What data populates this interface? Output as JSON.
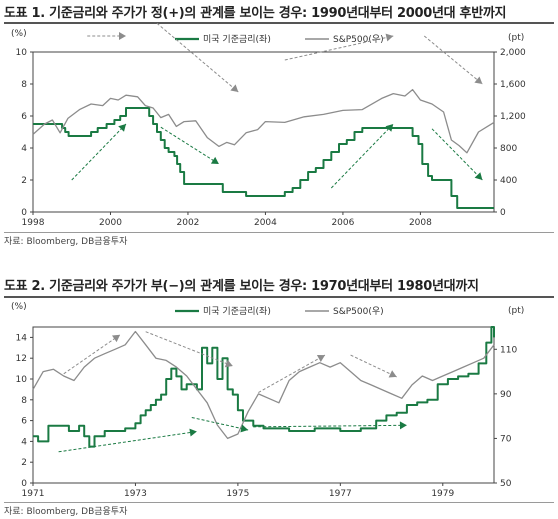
{
  "figures": [
    {
      "title": "도표 1. 기준금리와 주가가 정(+)의 관계를 보이는 경우: 1990년대부터 2000년대 후반까지",
      "source": "자료: Bloomberg, DB금융투자",
      "colors": {
        "rate": "#1a7a43",
        "spx": "#8c8c8c",
        "arrow_up": "#1a7a43",
        "arrow_down": "#8c8c8c"
      }
    },
    {
      "title": "도표 2. 기준금리와 주가가 부(−)의 관계를 보이는 경우: 1970년대부터 1980년대까지",
      "source": "자료: Bloomberg, DB금융투자",
      "colors": {
        "rate": "#1a7a43",
        "spx": "#8c8c8c",
        "arrow_up": "#1a7a43",
        "arrow_down": "#8c8c8c"
      }
    }
  ],
  "chart_data": [
    {
      "type": "line",
      "left_unit": "(%)",
      "right_unit": "(pt)",
      "legend_placement": "top-center",
      "grid": false,
      "x_range": [
        1998,
        2009.9
      ],
      "x_ticks": [
        "1998",
        "2000",
        "2002",
        "2004",
        "2006",
        "2008"
      ],
      "left_axis": {
        "range": [
          0,
          10
        ],
        "ticks": [
          "0",
          "2",
          "4",
          "6",
          "8",
          "10"
        ]
      },
      "right_axis": {
        "range": [
          0,
          2000
        ],
        "ticks": [
          "0",
          "400",
          "800",
          "1,200",
          "1,600",
          "2,000"
        ]
      },
      "series": [
        {
          "name": "미국 기준금리(좌)",
          "axis": "left",
          "step": true,
          "x": [
            1998.0,
            1998.75,
            1998.83,
            1998.92,
            1999.5,
            1999.67,
            1999.9,
            2000.1,
            2000.25,
            2000.4,
            2001.0,
            2001.1,
            2001.2,
            2001.3,
            2001.4,
            2001.5,
            2001.65,
            2001.72,
            2001.8,
            2001.9,
            2002.9,
            2003.5,
            2004.5,
            2004.7,
            2004.9,
            2005.1,
            2005.3,
            2005.5,
            2005.7,
            2005.9,
            2006.1,
            2006.3,
            2006.5,
            2007.7,
            2007.8,
            2007.95,
            2008.05,
            2008.2,
            2008.3,
            2008.8,
            2008.95,
            2009.9
          ],
          "values": [
            5.5,
            5.25,
            5.0,
            4.75,
            5.0,
            5.25,
            5.5,
            5.75,
            6.0,
            6.5,
            6.0,
            5.5,
            5.0,
            4.5,
            4.0,
            3.75,
            3.5,
            3.0,
            2.5,
            1.75,
            1.25,
            1.0,
            1.25,
            1.5,
            2.0,
            2.5,
            2.75,
            3.25,
            3.75,
            4.25,
            4.5,
            5.0,
            5.25,
            5.25,
            4.75,
            4.25,
            3.0,
            2.25,
            2.0,
            1.0,
            0.25,
            0.25
          ]
        },
        {
          "name": "S&P500(우)",
          "axis": "right",
          "x": [
            1998.0,
            1998.3,
            1998.5,
            1998.7,
            1998.9,
            1999.2,
            1999.5,
            1999.8,
            2000.0,
            2000.2,
            2000.4,
            2000.7,
            2000.9,
            2001.1,
            2001.3,
            2001.5,
            2001.7,
            2001.9,
            2002.2,
            2002.5,
            2002.8,
            2003.0,
            2003.2,
            2003.5,
            2003.8,
            2004.0,
            2004.5,
            2005.0,
            2005.5,
            2006.0,
            2006.5,
            2007.0,
            2007.3,
            2007.6,
            2007.8,
            2008.0,
            2008.3,
            2008.6,
            2008.8,
            2009.0,
            2009.2,
            2009.5,
            2009.9
          ],
          "values": [
            970,
            1100,
            1150,
            990,
            1170,
            1280,
            1350,
            1330,
            1420,
            1400,
            1460,
            1440,
            1330,
            1300,
            1180,
            1220,
            1070,
            1130,
            1140,
            930,
            820,
            870,
            840,
            990,
            1030,
            1130,
            1120,
            1190,
            1220,
            1270,
            1280,
            1420,
            1480,
            1450,
            1530,
            1400,
            1350,
            1250,
            900,
            830,
            740,
            1000,
            1120
          ]
        }
      ],
      "trend_arrows": [
        {
          "dir": "up",
          "color": "gray",
          "from": [
            1999.4,
            1.1
          ],
          "to": [
            2000.4,
            1.1
          ]
        },
        {
          "dir": "down",
          "color": "gray",
          "from": [
            2001.1,
            1.2
          ],
          "to": [
            2003.3,
            0.75
          ]
        },
        {
          "dir": "up",
          "color": "gray",
          "from": [
            2004.5,
            0.95
          ],
          "to": [
            2007.3,
            1.1
          ]
        },
        {
          "dir": "down",
          "color": "gray",
          "from": [
            2008.1,
            1.1
          ],
          "to": [
            2009.6,
            0.8
          ]
        },
        {
          "dir": "up",
          "color": "green",
          "from": [
            1999.0,
            0.2
          ],
          "to": [
            2000.4,
            0.55
          ]
        },
        {
          "dir": "down",
          "color": "green",
          "from": [
            2001.3,
            0.53
          ],
          "to": [
            2002.8,
            0.3
          ]
        },
        {
          "dir": "up",
          "color": "green",
          "from": [
            2005.7,
            0.15
          ],
          "to": [
            2007.3,
            0.55
          ]
        },
        {
          "dir": "down",
          "color": "green",
          "from": [
            2008.3,
            0.52
          ],
          "to": [
            2009.6,
            0.2
          ]
        }
      ]
    },
    {
      "type": "line",
      "left_unit": "(%)",
      "right_unit": "(pt)",
      "legend_placement": "top-center",
      "grid": false,
      "x_range": [
        1971,
        1980
      ],
      "x_ticks": [
        "1971",
        "1973",
        "1975",
        "1977",
        "1979"
      ],
      "left_axis": {
        "range": [
          0,
          15
        ],
        "ticks": [
          "0",
          "2",
          "4",
          "6",
          "8",
          "10",
          "12",
          "14"
        ]
      },
      "right_axis": {
        "range": [
          50,
          120
        ],
        "ticks": [
          "50",
          "70",
          "90",
          "110"
        ]
      },
      "series": [
        {
          "name": "미국 기준금리(좌)",
          "axis": "left",
          "step": true,
          "x": [
            1971.0,
            1971.1,
            1971.3,
            1971.7,
            1971.9,
            1972.0,
            1972.1,
            1972.2,
            1972.4,
            1972.6,
            1972.8,
            1973.0,
            1973.1,
            1973.2,
            1973.3,
            1973.4,
            1973.5,
            1973.6,
            1973.7,
            1973.8,
            1973.9,
            1974.0,
            1974.2,
            1974.3,
            1974.4,
            1974.5,
            1974.6,
            1974.7,
            1974.8,
            1974.9,
            1975.0,
            1975.1,
            1975.3,
            1975.5,
            1975.8,
            1976.0,
            1976.5,
            1977.0,
            1977.4,
            1977.7,
            1977.9,
            1978.1,
            1978.3,
            1978.5,
            1978.7,
            1978.9,
            1979.1,
            1979.3,
            1979.5,
            1979.7,
            1979.85,
            1979.95,
            1980.0
          ],
          "values": [
            4.5,
            4.0,
            5.5,
            5.0,
            5.5,
            4.5,
            3.5,
            4.5,
            5.0,
            5.0,
            5.25,
            5.75,
            6.5,
            7.0,
            7.5,
            8.0,
            8.5,
            10.0,
            11.0,
            10.25,
            9.0,
            9.5,
            9.0,
            13.0,
            11.5,
            13.0,
            10.0,
            12.0,
            9.0,
            8.5,
            7.0,
            6.0,
            5.5,
            5.25,
            5.25,
            5.0,
            5.25,
            5.0,
            5.25,
            6.0,
            6.5,
            6.75,
            7.5,
            7.75,
            8.0,
            9.5,
            10.0,
            10.25,
            10.5,
            11.5,
            13.5,
            15.0,
            14.0
          ]
        },
        {
          "name": "S&P500(우)",
          "axis": "right",
          "x": [
            1971.0,
            1971.2,
            1971.4,
            1971.6,
            1971.8,
            1972.0,
            1972.2,
            1972.4,
            1972.6,
            1972.8,
            1973.0,
            1973.2,
            1973.4,
            1973.6,
            1973.8,
            1974.0,
            1974.2,
            1974.4,
            1974.6,
            1974.8,
            1975.0,
            1975.2,
            1975.4,
            1975.6,
            1975.8,
            1976.0,
            1976.2,
            1976.4,
            1976.6,
            1976.8,
            1977.0,
            1977.2,
            1977.4,
            1977.6,
            1977.8,
            1978.0,
            1978.2,
            1978.4,
            1978.6,
            1978.8,
            1979.0,
            1979.2,
            1979.4,
            1979.6,
            1979.8,
            1980.0
          ],
          "values": [
            92,
            100,
            101,
            98,
            96,
            102,
            106,
            108,
            110,
            112,
            118,
            112,
            106,
            105,
            102,
            98,
            92,
            86,
            76,
            70,
            72,
            82,
            90,
            88,
            86,
            96,
            100,
            102,
            104,
            102,
            104,
            100,
            96,
            94,
            92,
            90,
            88,
            94,
            98,
            96,
            98,
            100,
            102,
            104,
            106,
            112
          ]
        }
      ],
      "trend_arrows": [
        {
          "dir": "up",
          "color": "gray",
          "from": [
            1971.6,
            0.7
          ],
          "to": [
            1972.7,
            0.95
          ]
        },
        {
          "dir": "down",
          "color": "gray",
          "from": [
            1973.2,
            0.97
          ],
          "to": [
            1974.9,
            0.75
          ]
        },
        {
          "dir": "up",
          "color": "gray",
          "from": [
            1975.4,
            0.58
          ],
          "to": [
            1976.7,
            0.82
          ]
        },
        {
          "dir": "down",
          "color": "gray",
          "from": [
            1977.2,
            0.82
          ],
          "to": [
            1978.1,
            0.68
          ]
        },
        {
          "dir": "up",
          "color": "green",
          "from": [
            1971.5,
            0.2
          ],
          "to": [
            1974.2,
            0.33
          ]
        },
        {
          "dir": "down",
          "color": "green",
          "from": [
            1974.1,
            0.42
          ],
          "to": [
            1975.2,
            0.34
          ]
        },
        {
          "dir": "up",
          "color": "green",
          "from": [
            1975.3,
            0.36
          ],
          "to": [
            1978.3,
            0.37
          ]
        }
      ]
    }
  ]
}
